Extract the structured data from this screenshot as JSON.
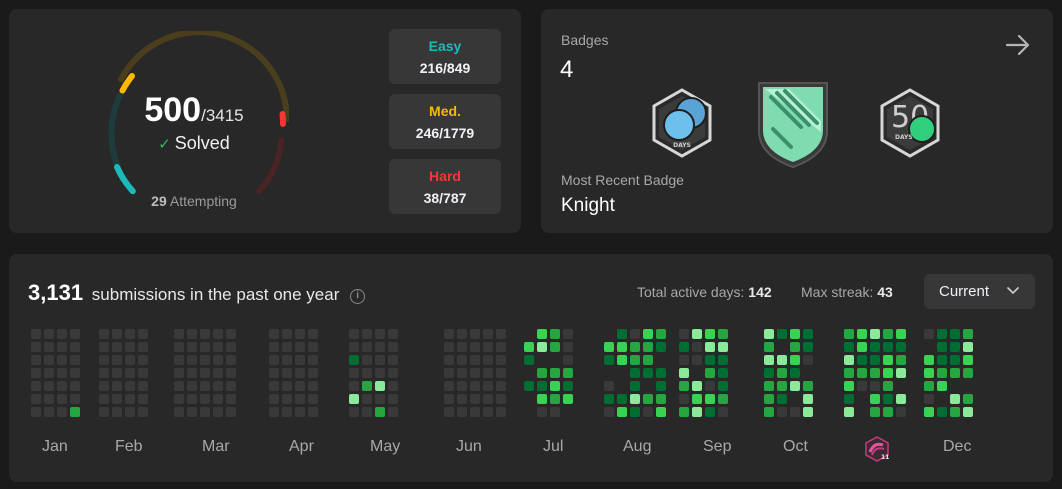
{
  "solved": {
    "count": "500",
    "total": "/3415",
    "label": "Solved",
    "attempting_count": "29",
    "attempting_label": "Attempting",
    "check_icon": "check-icon"
  },
  "difficulty": {
    "easy": {
      "label": "Easy",
      "value": "216/849",
      "color": "#1cbaba"
    },
    "medium": {
      "label": "Med.",
      "value": "246/1779",
      "color": "#ffb700"
    },
    "hard": {
      "label": "Hard",
      "value": "38/787",
      "color": "#f63737"
    }
  },
  "badges": {
    "label": "Badges",
    "count": "4",
    "arrow_icon": "arrow-right-icon",
    "recent_label": "Most Recent Badge",
    "recent_name": "Knight",
    "items": [
      {
        "icon": "days-badge-icon",
        "caption": "DAYS"
      },
      {
        "icon": "knight-badge-icon"
      },
      {
        "icon": "50-days-badge-icon",
        "caption": "DAYS",
        "number": "50"
      }
    ]
  },
  "activity": {
    "count": "3,131",
    "label": "submissions in the past one year",
    "info_icon": "info-icon",
    "active_days_label": "Total active days:",
    "active_days": "142",
    "max_streak_label": "Max streak:",
    "max_streak": "43",
    "dropdown_value": "Current",
    "months": [
      "Jan",
      "Feb",
      "Mar",
      "Apr",
      "May",
      "Jun",
      "Jul",
      "Aug",
      "Sep",
      "Oct",
      "Dec"
    ],
    "nov_icon": "monthly-badge-icon",
    "nov_icon_number": "11",
    "colors": {
      "empty": "#393939",
      "l1": "#0e4429",
      "l2": "#006d32",
      "l3": "#26a641",
      "l4": "#39d353",
      "l5": "#8ce99a"
    }
  }
}
